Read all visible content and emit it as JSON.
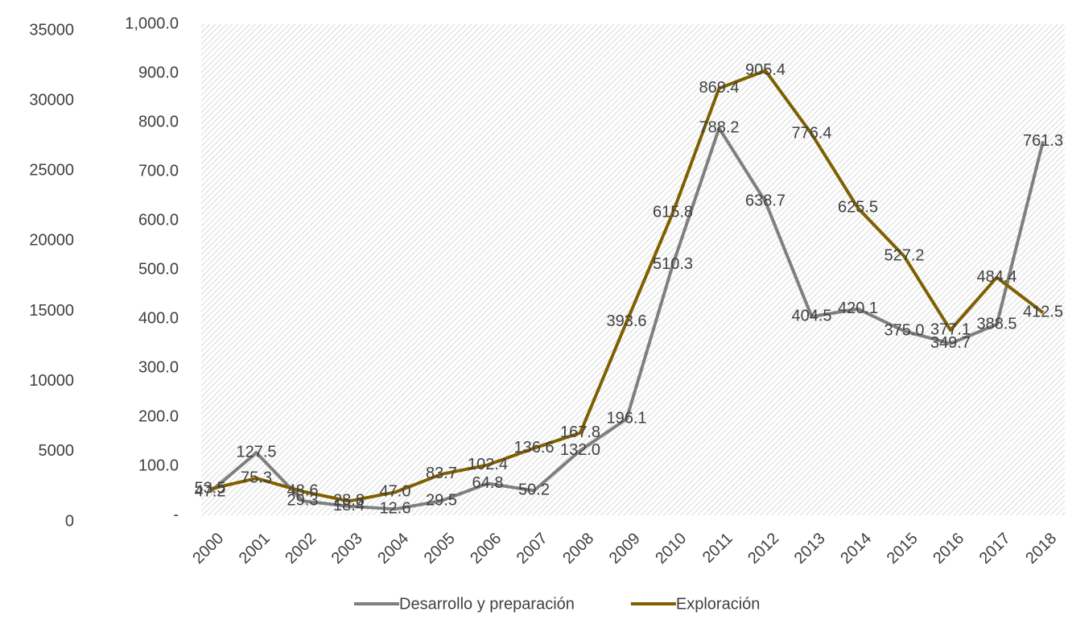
{
  "chart_data": {
    "type": "line",
    "categories": [
      "2000",
      "2001",
      "2002",
      "2003",
      "2004",
      "2005",
      "2006",
      "2007",
      "2008",
      "2009",
      "2010",
      "2011",
      "2012",
      "2013",
      "2014",
      "2015",
      "2016",
      "2017",
      "2018"
    ],
    "ylim": [
      0,
      35000
    ],
    "yticks": [
      0,
      5000,
      10000,
      15000,
      20000,
      25000,
      30000,
      35000
    ],
    "y2lim": [
      0,
      1000
    ],
    "y2ticks": [
      {
        "value": 0,
        "label": "-"
      },
      {
        "value": 100,
        "label": "100.0"
      },
      {
        "value": 200,
        "label": "200.0"
      },
      {
        "value": 300,
        "label": "300.0"
      },
      {
        "value": 400,
        "label": "400.0"
      },
      {
        "value": 500,
        "label": "500.0"
      },
      {
        "value": 600,
        "label": "600.0"
      },
      {
        "value": 700,
        "label": "700.0"
      },
      {
        "value": 800,
        "label": "800.0"
      },
      {
        "value": 900,
        "label": "900.0"
      },
      {
        "value": 1000,
        "label": "1,000.0"
      }
    ],
    "legend": "bottom",
    "series": [
      {
        "name": "Desarrollo y preparación",
        "color": "#7f7f7f",
        "axis": "y2",
        "values": [
          47.2,
          127.5,
          29.3,
          18.4,
          12.6,
          29.5,
          64.8,
          50.2,
          132.0,
          196.1,
          510.3,
          788.2,
          638.7,
          404.5,
          420.1,
          375.0,
          349.7,
          388.5,
          761.3
        ],
        "value_labels": [
          "47.2",
          "127.5",
          "29.3",
          "18.4",
          "12.6",
          "29.5",
          "64.8",
          "50.2",
          "132.0",
          "196.1",
          "510.3",
          "788.2",
          "638.7",
          "404.5",
          "420.1",
          "375.0",
          "349.7",
          "388.5",
          "761.3"
        ]
      },
      {
        "name": "Exploración",
        "color": "#7f6000",
        "axis": "y2",
        "values": [
          53.5,
          75.3,
          48.6,
          28.8,
          47.0,
          83.7,
          102.4,
          136.6,
          167.8,
          393.6,
          615.8,
          869.4,
          905.4,
          776.4,
          625.5,
          527.2,
          377.1,
          484.4,
          412.5
        ],
        "value_labels": [
          "53.5",
          "75.3",
          "48.6",
          "28.8",
          "47.0",
          "83.7",
          "102.4",
          "136.6",
          "167.8",
          "393.6",
          "615.8",
          "869.4",
          "905.4",
          "776.4",
          "625.5",
          "527.2",
          "377.1",
          "484.4",
          "412.5"
        ]
      }
    ]
  }
}
